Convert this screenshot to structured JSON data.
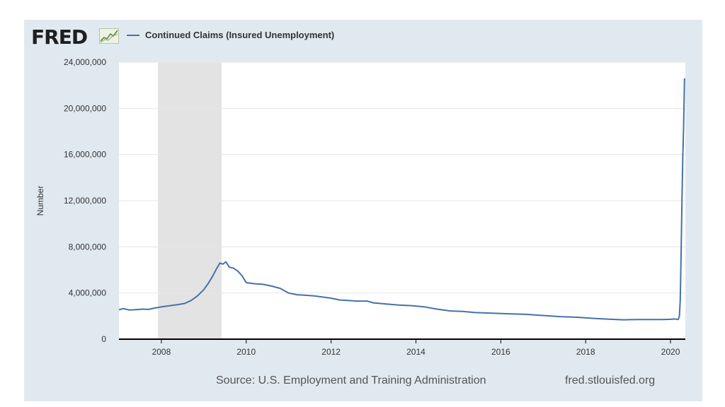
{
  "header": {
    "logo_text": "FRED",
    "logo_icon": "fred-line-graph-icon",
    "legend_label": "Continued Claims (Insured Unemployment)",
    "series_color": "#4572a7"
  },
  "footer": {
    "source": "Source: U.S. Employment and Training Administration",
    "site": "fred.stlouisfed.org"
  },
  "chart_data": {
    "type": "line",
    "title": "",
    "xlabel": "",
    "ylabel": "Number",
    "xlim": [
      2007.0,
      2020.35
    ],
    "ylim": [
      0,
      24000000
    ],
    "x_ticks": [
      2008,
      2010,
      2012,
      2014,
      2016,
      2018,
      2020
    ],
    "y_ticks": [
      0,
      4000000,
      8000000,
      12000000,
      16000000,
      20000000,
      24000000
    ],
    "x_tick_labels": [
      "2008",
      "2010",
      "2012",
      "2014",
      "2016",
      "2018",
      "2020"
    ],
    "y_tick_labels": [
      "0",
      "4,000,000",
      "8,000,000",
      "12,000,000",
      "16,000,000",
      "20,000,000",
      "24,000,000"
    ],
    "grid": true,
    "legend_position": "top-left",
    "recession_bands": [
      {
        "start": 2007.92,
        "end": 2009.42,
        "color": "#e3e3e3"
      }
    ],
    "series": [
      {
        "name": "Continued Claims (Insured Unemployment)",
        "color": "#4572a7",
        "points": [
          [
            2007.0,
            2550000
          ],
          [
            2007.1,
            2650000
          ],
          [
            2007.25,
            2520000
          ],
          [
            2007.4,
            2560000
          ],
          [
            2007.55,
            2600000
          ],
          [
            2007.7,
            2580000
          ],
          [
            2007.85,
            2700000
          ],
          [
            2008.0,
            2800000
          ],
          [
            2008.2,
            2900000
          ],
          [
            2008.4,
            3000000
          ],
          [
            2008.55,
            3100000
          ],
          [
            2008.7,
            3350000
          ],
          [
            2008.85,
            3750000
          ],
          [
            2009.0,
            4300000
          ],
          [
            2009.1,
            4800000
          ],
          [
            2009.2,
            5400000
          ],
          [
            2009.3,
            6100000
          ],
          [
            2009.38,
            6600000
          ],
          [
            2009.45,
            6500000
          ],
          [
            2009.52,
            6700000
          ],
          [
            2009.6,
            6250000
          ],
          [
            2009.7,
            6150000
          ],
          [
            2009.8,
            5900000
          ],
          [
            2009.9,
            5500000
          ],
          [
            2010.0,
            4900000
          ],
          [
            2010.2,
            4800000
          ],
          [
            2010.4,
            4750000
          ],
          [
            2010.6,
            4600000
          ],
          [
            2010.8,
            4400000
          ],
          [
            2011.0,
            4000000
          ],
          [
            2011.2,
            3850000
          ],
          [
            2011.4,
            3800000
          ],
          [
            2011.6,
            3750000
          ],
          [
            2011.8,
            3650000
          ],
          [
            2012.0,
            3550000
          ],
          [
            2012.2,
            3400000
          ],
          [
            2012.4,
            3350000
          ],
          [
            2012.6,
            3300000
          ],
          [
            2012.85,
            3300000
          ],
          [
            2013.0,
            3150000
          ],
          [
            2013.3,
            3050000
          ],
          [
            2013.6,
            2950000
          ],
          [
            2013.9,
            2900000
          ],
          [
            2014.2,
            2800000
          ],
          [
            2014.5,
            2600000
          ],
          [
            2014.8,
            2450000
          ],
          [
            2015.1,
            2400000
          ],
          [
            2015.4,
            2300000
          ],
          [
            2015.8,
            2250000
          ],
          [
            2016.2,
            2200000
          ],
          [
            2016.6,
            2150000
          ],
          [
            2017.0,
            2050000
          ],
          [
            2017.4,
            1950000
          ],
          [
            2017.8,
            1900000
          ],
          [
            2018.2,
            1800000
          ],
          [
            2018.6,
            1720000
          ],
          [
            2018.9,
            1680000
          ],
          [
            2019.2,
            1700000
          ],
          [
            2019.5,
            1700000
          ],
          [
            2019.8,
            1700000
          ],
          [
            2020.0,
            1720000
          ],
          [
            2020.1,
            1750000
          ],
          [
            2020.18,
            1700000
          ],
          [
            2020.21,
            2000000
          ],
          [
            2020.23,
            3400000
          ],
          [
            2020.25,
            7400000
          ],
          [
            2020.27,
            11900000
          ],
          [
            2020.29,
            15800000
          ],
          [
            2020.31,
            18600000
          ],
          [
            2020.33,
            22600000
          ]
        ]
      }
    ]
  }
}
